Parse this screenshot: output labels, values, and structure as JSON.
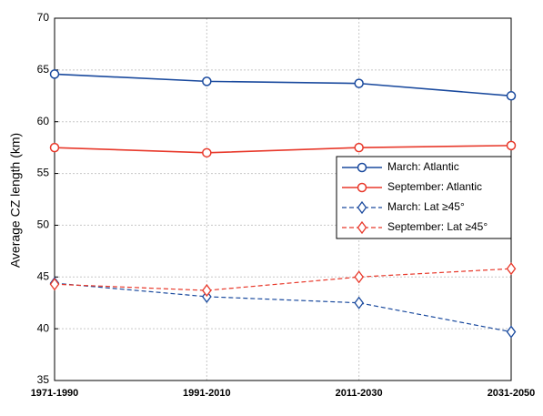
{
  "chart_data": {
    "type": "line",
    "y_label": "Average CZ length (km)",
    "categories": [
      "1971-1990",
      "1991-2010",
      "2011-2030",
      "2031-2050"
    ],
    "series": [
      {
        "name": "March: Atlantic",
        "color": "#1a4a9e",
        "marker": "circle",
        "dashed": false,
        "values": [
          64.6,
          63.9,
          63.7,
          62.5
        ]
      },
      {
        "name": "September: Atlantic",
        "color": "#e8392b",
        "marker": "circle",
        "dashed": false,
        "values": [
          57.5,
          57.0,
          57.5,
          57.7
        ]
      },
      {
        "name": "March: Lat ≥45°",
        "color": "#1a4a9e",
        "marker": "diamond",
        "dashed": true,
        "values": [
          44.4,
          43.1,
          42.5,
          39.7
        ]
      },
      {
        "name": "September: Lat ≥45°",
        "color": "#e8392b",
        "marker": "diamond",
        "dashed": true,
        "values": [
          44.3,
          43.7,
          45.0,
          45.8
        ]
      }
    ],
    "ylim": [
      35,
      70
    ],
    "yticks": [
      35,
      40,
      45,
      50,
      55,
      60,
      65,
      70
    ],
    "grid": true
  }
}
